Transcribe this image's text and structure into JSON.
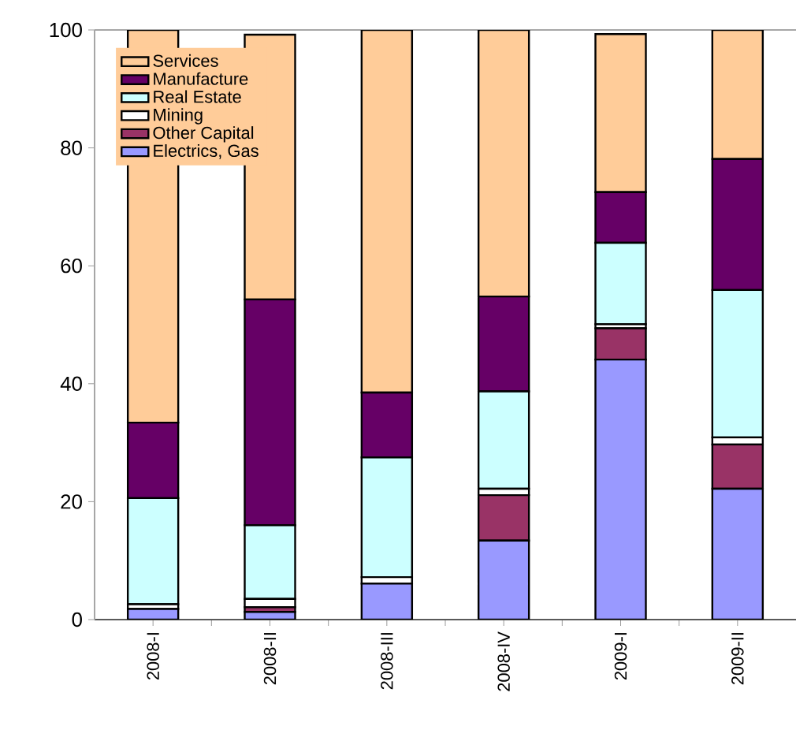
{
  "chart_data": {
    "type": "bar",
    "stacked": true,
    "categories": [
      "2008-I",
      "2008-II",
      "2008-III",
      "2008-IV",
      "2009-I",
      "2009-II"
    ],
    "series": [
      {
        "name": "Electrics, Gas",
        "color": "#9999ff",
        "values": [
          1.8,
          1.3,
          6.1,
          13.4,
          44.1,
          22.2
        ]
      },
      {
        "name": "Other Capital",
        "color": "#993366",
        "values": [
          0,
          0.8,
          0,
          7.7,
          5.3,
          7.5
        ]
      },
      {
        "name": "Mining",
        "color": "#ffffff",
        "values": [
          0.8,
          1.4,
          1.1,
          1.1,
          0.7,
          1.2
        ]
      },
      {
        "name": "Real Estate",
        "color": "#ccffff",
        "values": [
          18,
          12.5,
          20.3,
          16.5,
          13.8,
          25
        ]
      },
      {
        "name": "Manufacture",
        "color": "#660066",
        "values": [
          12.8,
          38.3,
          11,
          16.1,
          8.6,
          22.2
        ]
      },
      {
        "name": "Services",
        "color": "#ffcc99",
        "values": [
          66.6,
          44.9,
          61.5,
          45.2,
          26.8,
          21.9
        ]
      }
    ],
    "ylim": [
      0,
      100
    ],
    "yticks": [
      0,
      20,
      40,
      60,
      80,
      100
    ],
    "grid": false,
    "legend": "top left"
  }
}
